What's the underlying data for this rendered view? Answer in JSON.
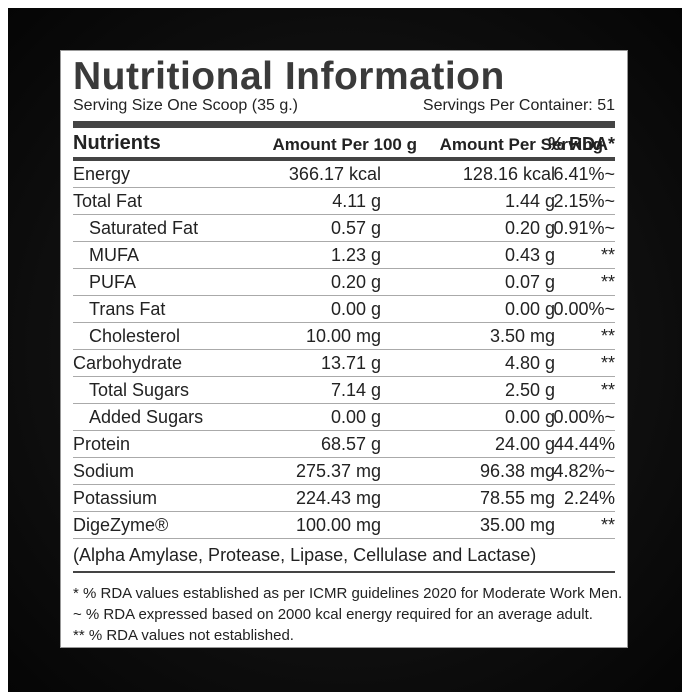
{
  "header": {
    "title": "Nutritional Information",
    "serving_size": "Serving Size One Scoop (35 g.)",
    "servings_per_container": "Servings Per Container: 51"
  },
  "table": {
    "columns": [
      "Nutrients",
      "Amount Per 100 g",
      "Amount Per Serving",
      "% RDA*"
    ],
    "rows": [
      [
        "Energy",
        "366.17 kcal",
        "128.16 kcal",
        "6.41%~"
      ],
      [
        "Total Fat",
        "4.11 g",
        "1.44 g",
        "2.15%~"
      ],
      [
        "Saturated Fat",
        "0.57 g",
        "0.20 g",
        "0.91%~"
      ],
      [
        "MUFA",
        "1.23 g",
        "0.43 g",
        "**"
      ],
      [
        "PUFA",
        "0.20 g",
        "0.07 g",
        "**"
      ],
      [
        "Trans Fat",
        "0.00 g",
        "0.00 g",
        "0.00%~"
      ],
      [
        "Cholesterol",
        "10.00 mg",
        "3.50 mg",
        "**"
      ],
      [
        "Carbohydrate",
        "13.71 g",
        "4.80 g",
        "**"
      ],
      [
        "Total Sugars",
        "7.14 g",
        "2.50 g",
        "**"
      ],
      [
        "Added Sugars",
        "0.00 g",
        "0.00 g",
        "0.00%~"
      ],
      [
        "Protein",
        "68.57 g",
        "24.00 g",
        "44.44%"
      ],
      [
        "Sodium",
        "275.37 mg",
        "96.38 mg",
        "4.82%~"
      ],
      [
        "Potassium",
        "224.43 mg",
        "78.55 mg",
        "2.24%"
      ],
      [
        "DigeZyme®",
        "100.00 mg",
        "35.00 mg",
        "**"
      ]
    ],
    "note": "(Alpha Amylase, Protease, Lipase, Cellulase and Lactase)"
  },
  "footnotes": [
    "* % RDA values established as per ICMR guidelines 2020 for Moderate Work Men.",
    "~ % RDA expressed based on 2000 kcal energy required for an average adult.",
    "** % RDA values not established."
  ]
}
